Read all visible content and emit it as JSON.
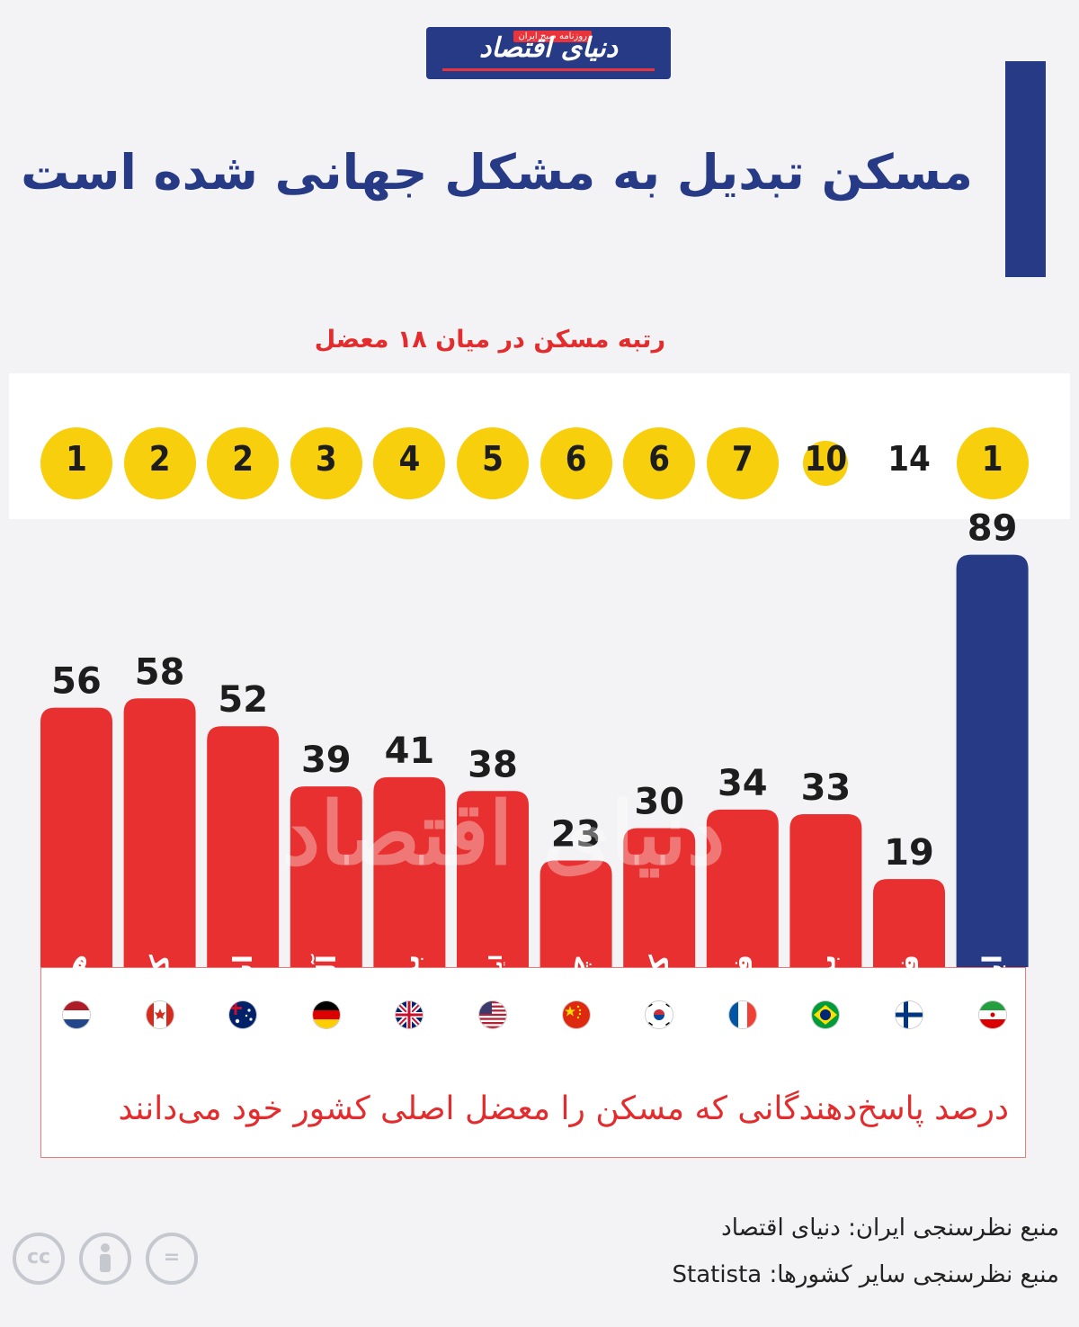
{
  "logo": {
    "name": "دنیای اقتصاد",
    "tag": "روزنامه صبح ایران"
  },
  "title": "مسکن تبدیل به مشکل جهانی شده است",
  "subtitle": "رتبه مسکن در میان ۱۸ معضل",
  "caption": "درصد پاسخ‌دهندگانی که مسکن را معضل اصلی کشور خود می‌دانند",
  "sources": [
    "منبع نظرسنجی ایران: دنیای اقتصاد",
    "منبع نظرسنجی سایر کشورها: Statista"
  ],
  "watermark": "دنیای اقتصاد",
  "colors": {
    "bar": "#e7302f",
    "highlight": "#273a86",
    "rank": "#f7cf0c",
    "title": "#273a86",
    "accent": "#e22c2e"
  },
  "chart_data": {
    "type": "bar",
    "categories": [
      "هلند",
      "کانادا",
      "استرالیا",
      "آلمان",
      "بریتانیا",
      "ایالات متحده آمریکا",
      "چین",
      "کره جنوبی",
      "فرانسه",
      "برزیل",
      "فنلاند",
      "ایران"
    ],
    "values": [
      56,
      58,
      52,
      39,
      41,
      38,
      23,
      30,
      34,
      33,
      19,
      89
    ],
    "ranks": [
      1,
      2,
      2,
      3,
      4,
      5,
      6,
      6,
      7,
      10,
      14,
      1
    ],
    "flags": [
      "netherlands",
      "canada",
      "australia",
      "germany",
      "uk",
      "usa",
      "china",
      "south-korea",
      "france",
      "brazil",
      "finland",
      "iran"
    ],
    "highlight_index": 11,
    "title": "مسکن تبدیل به مشکل جهانی شده است",
    "xlabel": "",
    "ylabel": "",
    "ylim": [
      0,
      100
    ]
  }
}
